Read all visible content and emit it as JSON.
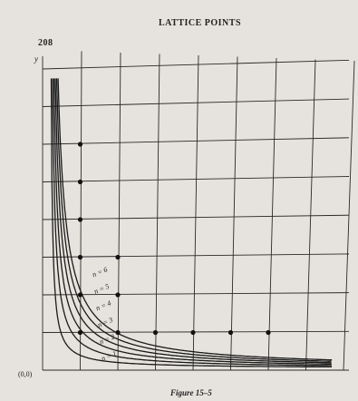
{
  "header": {
    "page_number": "208",
    "title": "LATTICE POINTS"
  },
  "figure": {
    "y_axis_label": "y",
    "origin_label": "(0,0)",
    "curve_labels": [
      "n = 1",
      "n = 2",
      "n = 3",
      "n = 4",
      "n = 5",
      "n = 6"
    ],
    "caption": "Figure 15–5"
  }
}
